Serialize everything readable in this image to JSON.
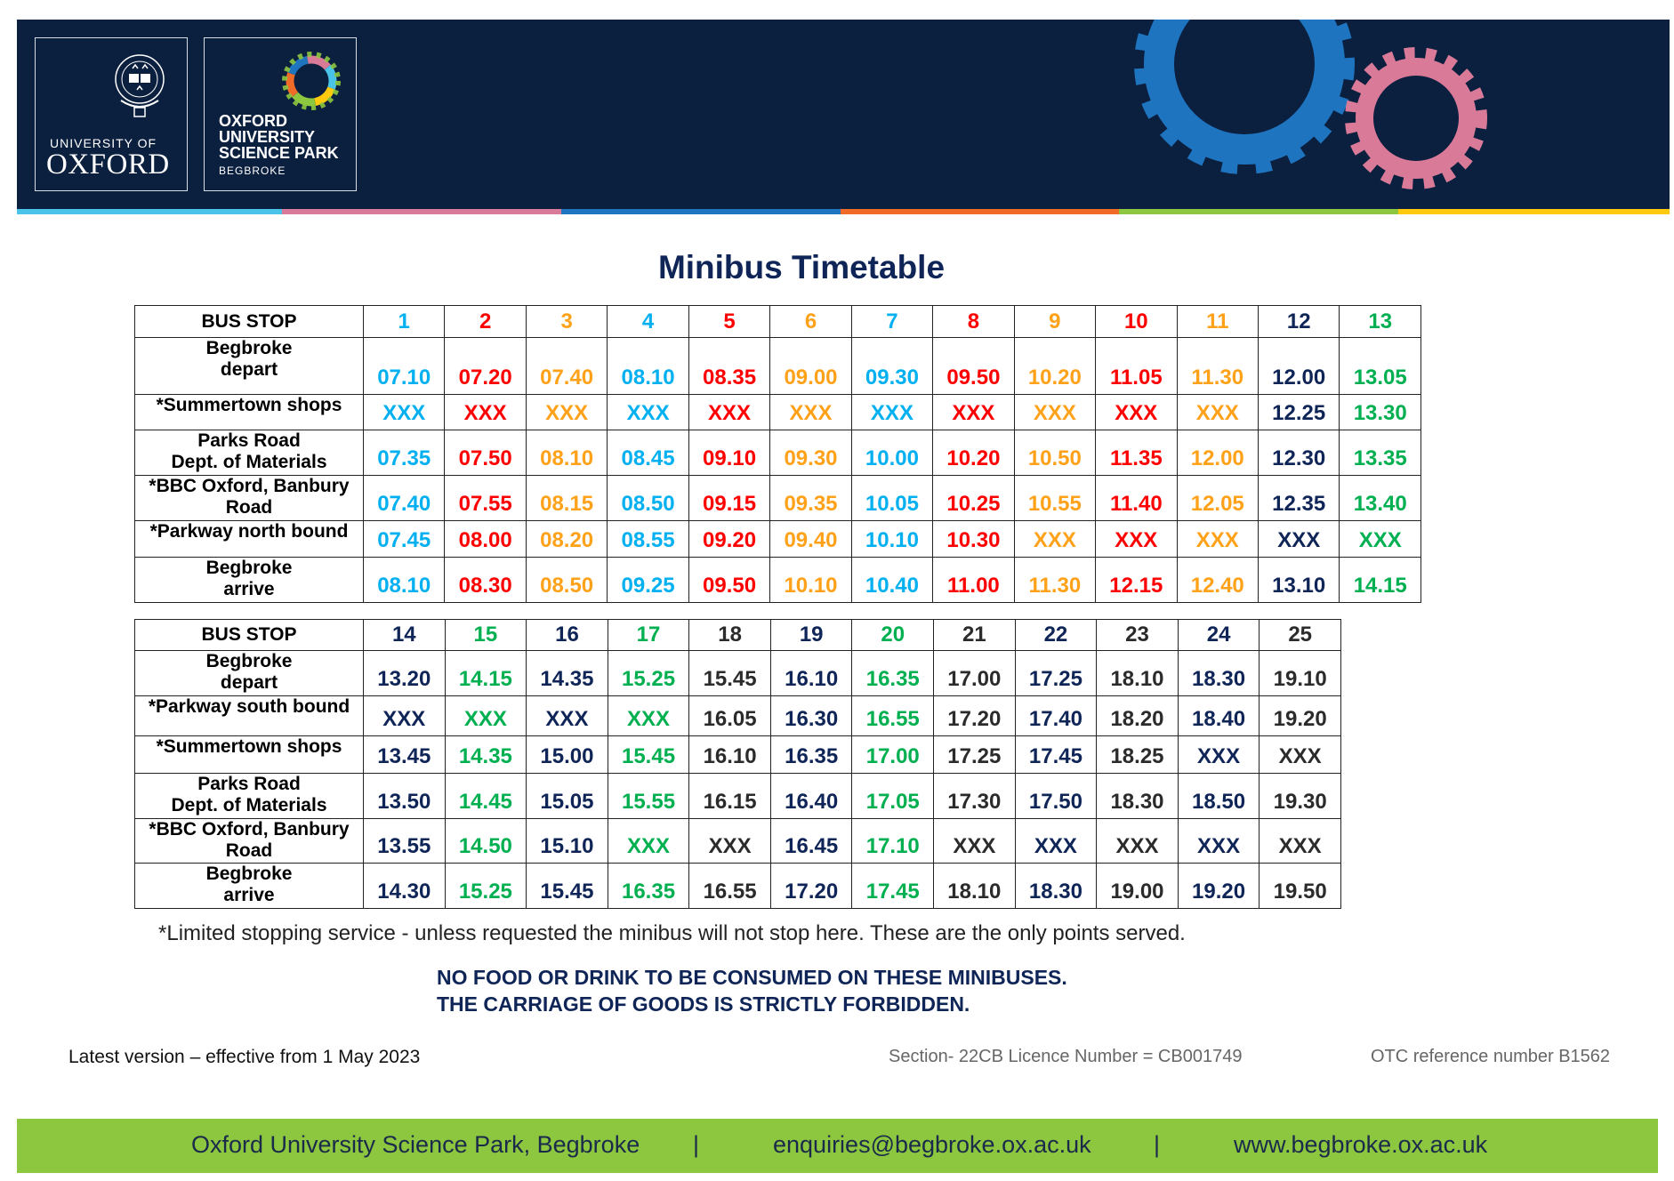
{
  "header": {
    "oxford_logo": {
      "line1": "UNIVERSITY OF",
      "line2": "OXFORD"
    },
    "science_park_logo": {
      "line1": "OXFORD",
      "line2": "UNIVERSITY",
      "line3": "SCIENCE PARK",
      "line4": "BEGBROKE"
    },
    "strip_colors": [
      "#4ac3e8",
      "#d97b98",
      "#1f74c0",
      "#f06a28",
      "#8dc63f",
      "#ffc90e"
    ],
    "gear_colors": {
      "large": "#1f74c0",
      "small": "#d97b98"
    }
  },
  "title": "Minibus Timetable",
  "colors": {
    "cyan": "#00b0f0",
    "red": "#ff0000",
    "orange": "#ffa21a",
    "navy": "#0f2557",
    "green": "#00b050",
    "gray": "#2b2b2b"
  },
  "table1": {
    "header_label": "BUS STOP",
    "columns": [
      {
        "n": "1",
        "color": "cyan"
      },
      {
        "n": "2",
        "color": "red"
      },
      {
        "n": "3",
        "color": "orange"
      },
      {
        "n": "4",
        "color": "cyan"
      },
      {
        "n": "5",
        "color": "red"
      },
      {
        "n": "6",
        "color": "orange"
      },
      {
        "n": "7",
        "color": "cyan"
      },
      {
        "n": "8",
        "color": "red"
      },
      {
        "n": "9",
        "color": "orange"
      },
      {
        "n": "10",
        "color": "red"
      },
      {
        "n": "11",
        "color": "orange"
      },
      {
        "n": "12",
        "color": "navy"
      },
      {
        "n": "13",
        "color": "green"
      }
    ],
    "rows": [
      {
        "label": [
          "Begbroke",
          "depart"
        ],
        "times": [
          "07.10",
          "07.20",
          "07.40",
          "08.10",
          "08.35",
          "09.00",
          "09.30",
          "09.50",
          "10.20",
          "11.05",
          "11.30",
          "12.00",
          "13.05"
        ]
      },
      {
        "label": [
          "*Summertown shops"
        ],
        "times": [
          "XXX",
          "XXX",
          "XXX",
          "XXX",
          "XXX",
          "XXX",
          "XXX",
          "XXX",
          "XXX",
          "XXX",
          "XXX",
          "12.25",
          "13.30"
        ]
      },
      {
        "label": [
          "Parks Road",
          "Dept. of Materials"
        ],
        "times": [
          "07.35",
          "07.50",
          "08.10",
          "08.45",
          "09.10",
          "09.30",
          "10.00",
          "10.20",
          "10.50",
          "11.35",
          "12.00",
          "12.30",
          "13.35"
        ]
      },
      {
        "label": [
          "*BBC Oxford, Banbury",
          "Road"
        ],
        "times": [
          "07.40",
          "07.55",
          "08.15",
          "08.50",
          "09.15",
          "09.35",
          "10.05",
          "10.25",
          "10.55",
          "11.40",
          "12.05",
          "12.35",
          "13.40"
        ]
      },
      {
        "label": [
          "*Parkway north bound"
        ],
        "times": [
          "07.45",
          "08.00",
          "08.20",
          "08.55",
          "09.20",
          "09.40",
          "10.10",
          "10.30",
          "XXX",
          "XXX",
          "XXX",
          "XXX",
          "XXX"
        ]
      },
      {
        "label": [
          "Begbroke",
          "arrive"
        ],
        "times": [
          "08.10",
          "08.30",
          "08.50",
          "09.25",
          "09.50",
          "10.10",
          "10.40",
          "11.00",
          "11.30",
          "12.15",
          "12.40",
          "13.10",
          "14.15"
        ]
      }
    ]
  },
  "table2": {
    "header_label": "BUS STOP",
    "columns": [
      {
        "n": "14",
        "color": "navy"
      },
      {
        "n": "15",
        "color": "green"
      },
      {
        "n": "16",
        "color": "navy"
      },
      {
        "n": "17",
        "color": "green"
      },
      {
        "n": "18",
        "color": "gray"
      },
      {
        "n": "19",
        "color": "navy"
      },
      {
        "n": "20",
        "color": "green"
      },
      {
        "n": "21",
        "color": "gray"
      },
      {
        "n": "22",
        "color": "navy"
      },
      {
        "n": "23",
        "color": "gray"
      },
      {
        "n": "24",
        "color": "navy"
      },
      {
        "n": "25",
        "color": "gray"
      }
    ],
    "rows": [
      {
        "label": [
          "Begbroke",
          "depart"
        ],
        "times": [
          "13.20",
          "14.15",
          "14.35",
          "15.25",
          "15.45",
          "16.10",
          "16.35",
          "17.00",
          "17.25",
          "18.10",
          "18.30",
          "19.10"
        ]
      },
      {
        "label": [
          "*Parkway south bound"
        ],
        "times": [
          "XXX",
          "XXX",
          "XXX",
          "XXX",
          "16.05",
          "16.30",
          "16.55",
          "17.20",
          "17.40",
          "18.20",
          "18.40",
          "19.20"
        ]
      },
      {
        "label": [
          "*Summertown shops"
        ],
        "times": [
          "13.45",
          "14.35",
          "15.00",
          "15.45",
          "16.10",
          "16.35",
          "17.00",
          "17.25",
          "17.45",
          "18.25",
          "XXX",
          "XXX"
        ]
      },
      {
        "label": [
          "Parks Road",
          "Dept. of Materials"
        ],
        "times": [
          "13.50",
          "14.45",
          "15.05",
          "15.55",
          "16.15",
          "16.40",
          "17.05",
          "17.30",
          "17.50",
          "18.30",
          "18.50",
          "19.30"
        ]
      },
      {
        "label": [
          "*BBC Oxford, Banbury",
          "Road"
        ],
        "times": [
          "13.55",
          "14.50",
          "15.10",
          "XXX",
          "XXX",
          "16.45",
          "17.10",
          "XXX",
          "XXX",
          "XXX",
          "XXX",
          "XXX"
        ]
      },
      {
        "label": [
          "Begbroke",
          "arrive"
        ],
        "times": [
          "14.30",
          "15.25",
          "15.45",
          "16.35",
          "16.55",
          "17.20",
          "17.45",
          "18.10",
          "18.30",
          "19.00",
          "19.20",
          "19.50"
        ]
      }
    ]
  },
  "footnote": "*Limited stopping service - unless requested the minibus will not stop here. These are the only points served.",
  "notices": [
    "NO FOOD OR DRINK TO BE CONSUMED ON THESE MINIBUSES.",
    "THE CARRIAGE OF GOODS IS STRICTLY FORBIDDEN."
  ],
  "meta": {
    "version": "Latest version – effective from 1 May 2023",
    "licence": "Section- 22CB Licence Number = CB001749",
    "otc": "OTC reference number B1562"
  },
  "footer": {
    "address": "Oxford University Science Park, Begbroke",
    "separator": "|",
    "email": "enquiries@begbroke.ox.ac.uk",
    "website": "www.begbroke.ox.ac.uk"
  }
}
